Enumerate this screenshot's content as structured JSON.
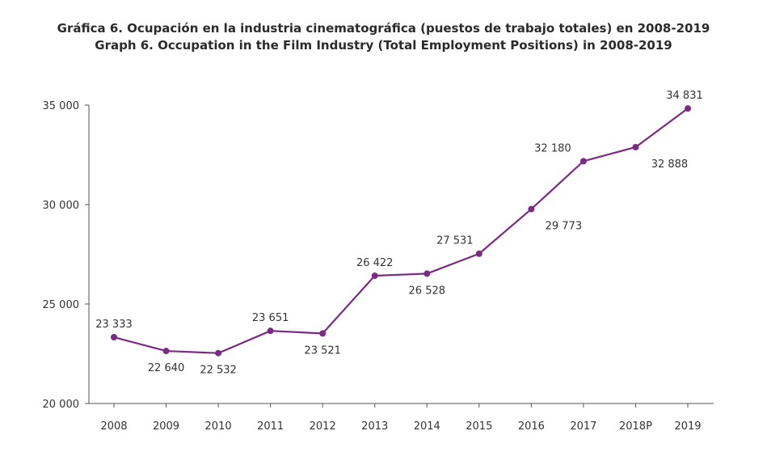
{
  "chart_data": {
    "type": "line",
    "title": "Gráfica 6. Ocupación en la industria cinematográfica (puestos de trabajo totales) en 2008-2019",
    "subtitle": "Graph 6. Occupation in the Film Industry (Total Employment Positions) in 2008-2019",
    "xlabel": "",
    "ylabel": "",
    "categories": [
      "2008",
      "2009",
      "2010",
      "2011",
      "2012",
      "2013",
      "2014",
      "2015",
      "2016",
      "2017",
      "2018P",
      "2019"
    ],
    "series": [
      {
        "values": [
          23333,
          22640,
          22532,
          23651,
          23521,
          26422,
          26528,
          27531,
          29773,
          32180,
          32888,
          34831
        ]
      }
    ],
    "data_labels": [
      "23 333",
      "22 640",
      "22 532",
      "23 651",
      "23 521",
      "26 422",
      "26 528",
      "27 531",
      "29 773",
      "32 180",
      "32 888",
      "34 831"
    ],
    "label_positions": [
      "above",
      "below",
      "below",
      "above",
      "below",
      "above",
      "below",
      "above",
      "below",
      "above",
      "below",
      "above"
    ],
    "yticks": [
      20000,
      25000,
      30000,
      35000
    ],
    "ytick_labels": [
      "20 000",
      "25 000",
      "30 000",
      "35 000"
    ],
    "ylim": [
      20000,
      35000
    ],
    "grid": false,
    "legend": "none",
    "colors": {
      "line": "#7b2a85",
      "axis": "#555555"
    }
  }
}
